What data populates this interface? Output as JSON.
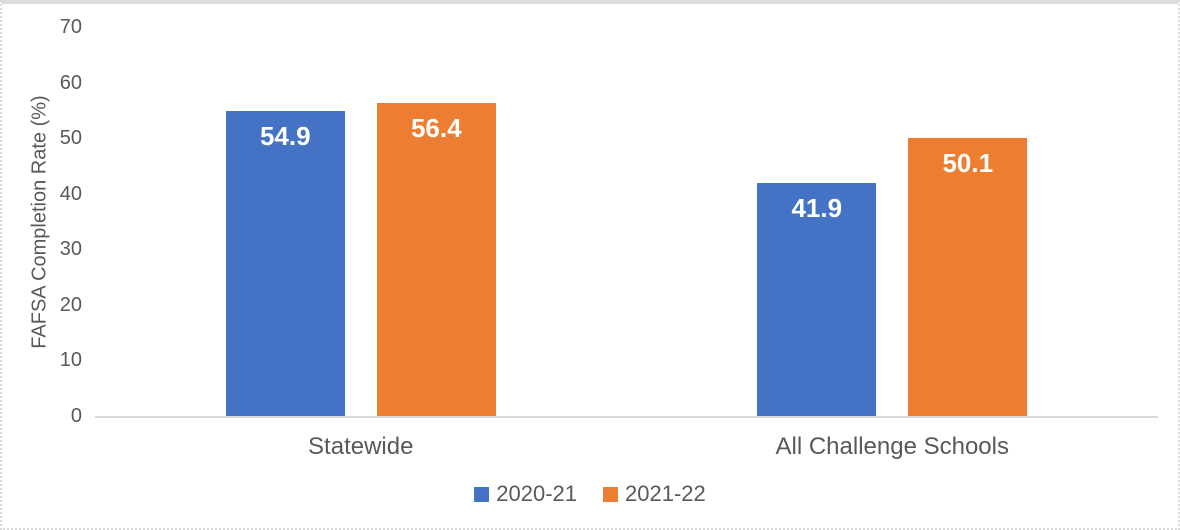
{
  "chart_data": {
    "type": "bar",
    "title": "",
    "categories": [
      "Statewide",
      "All Challenge Schools"
    ],
    "series": [
      {
        "name": "2020-21",
        "color": "#4472C4",
        "values": [
          54.9,
          41.9
        ]
      },
      {
        "name": "2021-22",
        "color": "#ED7D31",
        "values": [
          56.4,
          50.1
        ]
      }
    ],
    "xlabel": "",
    "ylabel": "FAFSA Completion Rate (%)",
    "ylim": [
      0,
      70
    ],
    "yticks": [
      0,
      10,
      20,
      30,
      40,
      50,
      60,
      70
    ],
    "grid": false,
    "legend_position": "bottom",
    "data_labels": true,
    "value_decimals": 1
  },
  "colors": {
    "background": "#FFFFFF",
    "axis_line": "#D9D9D9",
    "frame_border": "#D9D9D9",
    "axis_text": "#595959",
    "data_label_text": "#FFFFFF"
  }
}
